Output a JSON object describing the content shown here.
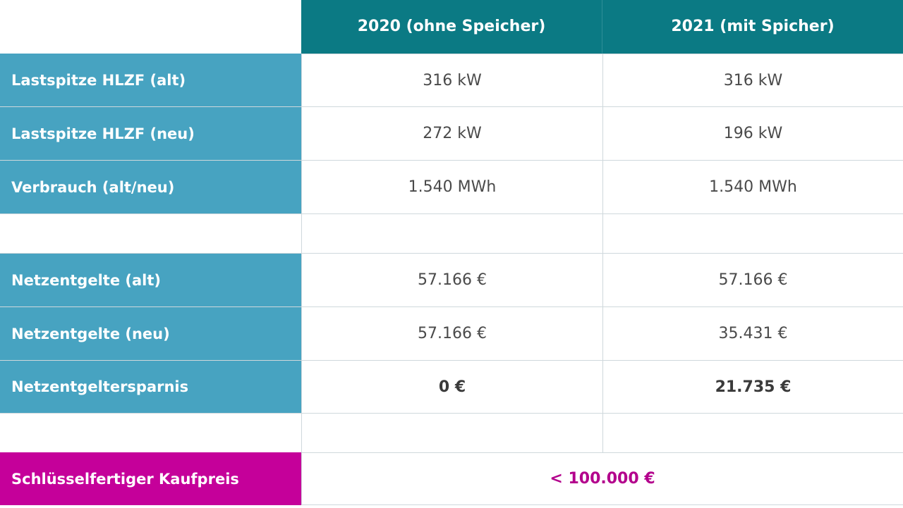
{
  "header": {
    "col_2020": "2020 (ohne Speicher)",
    "col_2021": "2021 (mit Spicher)"
  },
  "rows": [
    {
      "label": "Lastspitze HLZF (alt)",
      "v2020": "316 kW",
      "v2021": "316 kW"
    },
    {
      "label": "Lastspitze HLZF (neu)",
      "v2020": "272 kW",
      "v2021": "196 kW"
    },
    {
      "label": "Verbrauch (alt/neu)",
      "v2020": "1.540 MWh",
      "v2021": "1.540 MWh"
    },
    {
      "label": "Netzentgelte (alt)",
      "v2020": "57.166 €",
      "v2021": "57.166 €"
    },
    {
      "label": "Netzentgelte (neu)",
      "v2020": "57.166 €",
      "v2021": "35.431 €"
    },
    {
      "label": "Netzentgeltersparnis",
      "v2020": "0 €",
      "v2021": "21.735 €"
    }
  ],
  "price": {
    "label": "Schlüsselfertiger Kaufpreis",
    "value": "< 100.000 €"
  },
  "colors": {
    "header_bg": "#0b7a84",
    "row_label_bg": "#47a3c1",
    "price_label_bg": "#c5009a",
    "price_value_text": "#b3008c"
  }
}
